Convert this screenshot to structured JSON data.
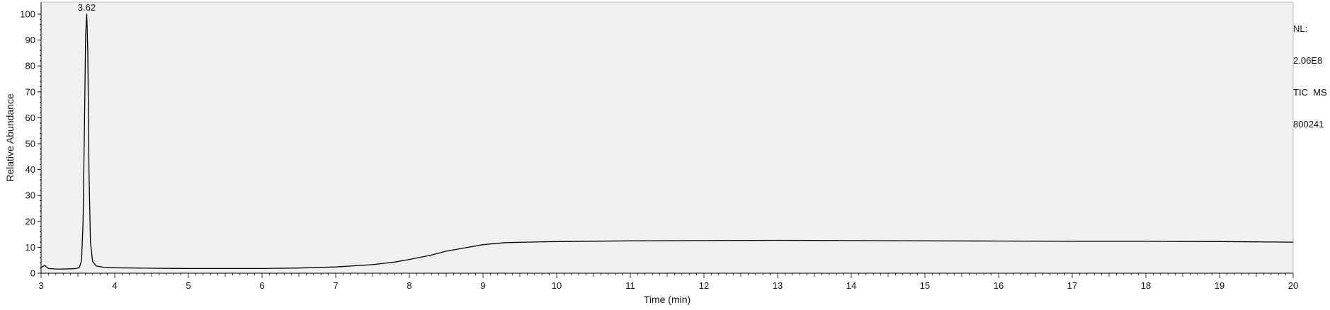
{
  "chart_data": {
    "type": "line",
    "xlabel": "Time (min)",
    "ylabel": "Relative Abundance",
    "xlim": [
      3,
      20
    ],
    "ylim": [
      0,
      100
    ],
    "x_ticks": [
      3,
      4,
      5,
      6,
      7,
      8,
      9,
      10,
      11,
      12,
      13,
      14,
      15,
      16,
      17,
      18,
      19,
      20
    ],
    "y_ticks": [
      0,
      10,
      20,
      30,
      40,
      50,
      60,
      70,
      80,
      90,
      100
    ],
    "grid": false,
    "series": [
      {
        "color": "#000000",
        "points": [
          [
            3.0,
            2.2
          ],
          [
            3.05,
            3.0
          ],
          [
            3.1,
            1.8
          ],
          [
            3.2,
            1.6
          ],
          [
            3.3,
            1.6
          ],
          [
            3.4,
            1.7
          ],
          [
            3.48,
            1.8
          ],
          [
            3.52,
            2.2
          ],
          [
            3.55,
            5.0
          ],
          [
            3.57,
            20.0
          ],
          [
            3.59,
            60.0
          ],
          [
            3.605,
            92.0
          ],
          [
            3.62,
            100.0
          ],
          [
            3.635,
            85.0
          ],
          [
            3.65,
            40.0
          ],
          [
            3.67,
            12.0
          ],
          [
            3.7,
            4.5
          ],
          [
            3.75,
            2.8
          ],
          [
            3.85,
            2.3
          ],
          [
            4.0,
            2.1
          ],
          [
            4.5,
            1.9
          ],
          [
            5.0,
            1.8
          ],
          [
            6.0,
            1.8
          ],
          [
            6.5,
            2.0
          ],
          [
            7.0,
            2.4
          ],
          [
            7.5,
            3.3
          ],
          [
            7.8,
            4.3
          ],
          [
            8.0,
            5.3
          ],
          [
            8.3,
            7.0
          ],
          [
            8.5,
            8.5
          ],
          [
            8.8,
            10.0
          ],
          [
            9.0,
            11.0
          ],
          [
            9.3,
            11.8
          ],
          [
            9.6,
            12.0
          ],
          [
            10.0,
            12.2
          ],
          [
            11.0,
            12.5
          ],
          [
            12.0,
            12.6
          ],
          [
            13.0,
            12.7
          ],
          [
            14.0,
            12.6
          ],
          [
            15.0,
            12.5
          ],
          [
            16.0,
            12.4
          ],
          [
            17.0,
            12.3
          ],
          [
            18.0,
            12.3
          ],
          [
            19.0,
            12.2
          ],
          [
            19.5,
            12.1
          ],
          [
            20.0,
            12.0
          ]
        ]
      }
    ],
    "annotations": [
      {
        "x": 3.62,
        "y": 100,
        "text": "3.62"
      }
    ],
    "info_box": {
      "lines": [
        "NL:",
        "2.06E8",
        "TIC  MS",
        "800241"
      ],
      "placement": "top-right"
    }
  }
}
